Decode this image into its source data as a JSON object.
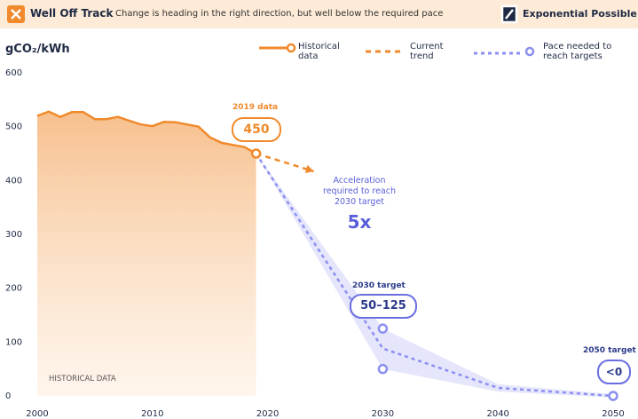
{
  "chart_data": {
    "type": "line",
    "title": "Well Off Track",
    "subtitle": "Change is heading in the right direction, but well below the required pace",
    "brand": "Exponential Possible",
    "y_label": "gCO₂/kWh",
    "xlim": [
      2000,
      2050
    ],
    "ylim": [
      0,
      600
    ],
    "xticks": [
      2000,
      2010,
      2020,
      2030,
      2040,
      2050
    ],
    "yticks": [
      0,
      100,
      200,
      300,
      400,
      500,
      600
    ],
    "series": [
      {
        "name": "Historical data",
        "color": "#f08a2c",
        "x": [
          2000,
          2001,
          2002,
          2003,
          2004,
          2005,
          2006,
          2007,
          2008,
          2009,
          2010,
          2011,
          2012,
          2013,
          2014,
          2015,
          2016,
          2017,
          2018,
          2019
        ],
        "values": [
          520,
          528,
          518,
          527,
          527,
          514,
          514,
          518,
          511,
          504,
          501,
          509,
          508,
          504,
          500,
          480,
          470,
          466,
          462,
          450
        ]
      },
      {
        "name": "Current trend",
        "color": "#f08a2c",
        "x": [
          2019,
          2024
        ],
        "values": [
          450,
          417
        ]
      },
      {
        "name": "Pace needed to reach targets",
        "color": "#8c8ff0",
        "x": [
          2019,
          2030,
          2040,
          2050
        ],
        "values": [
          450,
          88,
          15,
          0
        ],
        "range_high": [
          450,
          125,
          22,
          3
        ],
        "range_low": [
          450,
          50,
          8,
          -3
        ]
      }
    ],
    "annotations": [
      "2019 data",
      "450",
      "Acceleration required to reach 2030 target",
      "5x",
      "2030 target",
      "50–125",
      "2050 target",
      "<0",
      "HISTORICAL DATA"
    ]
  }
}
